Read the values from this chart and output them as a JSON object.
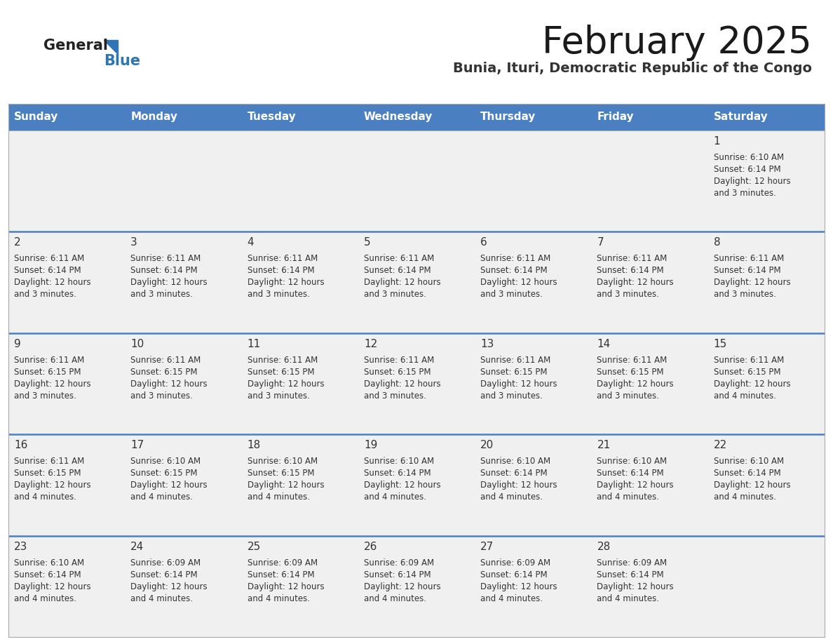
{
  "title": "February 2025",
  "subtitle": "Bunia, Ituri, Democratic Republic of the Congo",
  "header_bg": "#4a7fc1",
  "header_text_color": "#FFFFFF",
  "cell_bg_odd": "#f0f0f0",
  "cell_bg_even": "#ffffff",
  "separator_color": "#4a7fc1",
  "day_number_color": "#333333",
  "info_text_color": "#333333",
  "logo_general_color": "#222222",
  "logo_blue_color": "#2E75B6",
  "day_headers": [
    "Sunday",
    "Monday",
    "Tuesday",
    "Wednesday",
    "Thursday",
    "Friday",
    "Saturday"
  ],
  "calendar": [
    [
      {
        "day": null,
        "sunrise": null,
        "sunset": null,
        "daylight_line1": null,
        "daylight_line2": null
      },
      {
        "day": null,
        "sunrise": null,
        "sunset": null,
        "daylight_line1": null,
        "daylight_line2": null
      },
      {
        "day": null,
        "sunrise": null,
        "sunset": null,
        "daylight_line1": null,
        "daylight_line2": null
      },
      {
        "day": null,
        "sunrise": null,
        "sunset": null,
        "daylight_line1": null,
        "daylight_line2": null
      },
      {
        "day": null,
        "sunrise": null,
        "sunset": null,
        "daylight_line1": null,
        "daylight_line2": null
      },
      {
        "day": null,
        "sunrise": null,
        "sunset": null,
        "daylight_line1": null,
        "daylight_line2": null
      },
      {
        "day": "1",
        "sunrise": "6:10 AM",
        "sunset": "6:14 PM",
        "daylight_line1": "12 hours",
        "daylight_line2": "and 3 minutes."
      }
    ],
    [
      {
        "day": "2",
        "sunrise": "6:11 AM",
        "sunset": "6:14 PM",
        "daylight_line1": "12 hours",
        "daylight_line2": "and 3 minutes."
      },
      {
        "day": "3",
        "sunrise": "6:11 AM",
        "sunset": "6:14 PM",
        "daylight_line1": "12 hours",
        "daylight_line2": "and 3 minutes."
      },
      {
        "day": "4",
        "sunrise": "6:11 AM",
        "sunset": "6:14 PM",
        "daylight_line1": "12 hours",
        "daylight_line2": "and 3 minutes."
      },
      {
        "day": "5",
        "sunrise": "6:11 AM",
        "sunset": "6:14 PM",
        "daylight_line1": "12 hours",
        "daylight_line2": "and 3 minutes."
      },
      {
        "day": "6",
        "sunrise": "6:11 AM",
        "sunset": "6:14 PM",
        "daylight_line1": "12 hours",
        "daylight_line2": "and 3 minutes."
      },
      {
        "day": "7",
        "sunrise": "6:11 AM",
        "sunset": "6:14 PM",
        "daylight_line1": "12 hours",
        "daylight_line2": "and 3 minutes."
      },
      {
        "day": "8",
        "sunrise": "6:11 AM",
        "sunset": "6:14 PM",
        "daylight_line1": "12 hours",
        "daylight_line2": "and 3 minutes."
      }
    ],
    [
      {
        "day": "9",
        "sunrise": "6:11 AM",
        "sunset": "6:15 PM",
        "daylight_line1": "12 hours",
        "daylight_line2": "and 3 minutes."
      },
      {
        "day": "10",
        "sunrise": "6:11 AM",
        "sunset": "6:15 PM",
        "daylight_line1": "12 hours",
        "daylight_line2": "and 3 minutes."
      },
      {
        "day": "11",
        "sunrise": "6:11 AM",
        "sunset": "6:15 PM",
        "daylight_line1": "12 hours",
        "daylight_line2": "and 3 minutes."
      },
      {
        "day": "12",
        "sunrise": "6:11 AM",
        "sunset": "6:15 PM",
        "daylight_line1": "12 hours",
        "daylight_line2": "and 3 minutes."
      },
      {
        "day": "13",
        "sunrise": "6:11 AM",
        "sunset": "6:15 PM",
        "daylight_line1": "12 hours",
        "daylight_line2": "and 3 minutes."
      },
      {
        "day": "14",
        "sunrise": "6:11 AM",
        "sunset": "6:15 PM",
        "daylight_line1": "12 hours",
        "daylight_line2": "and 3 minutes."
      },
      {
        "day": "15",
        "sunrise": "6:11 AM",
        "sunset": "6:15 PM",
        "daylight_line1": "12 hours",
        "daylight_line2": "and 4 minutes."
      }
    ],
    [
      {
        "day": "16",
        "sunrise": "6:11 AM",
        "sunset": "6:15 PM",
        "daylight_line1": "12 hours",
        "daylight_line2": "and 4 minutes."
      },
      {
        "day": "17",
        "sunrise": "6:10 AM",
        "sunset": "6:15 PM",
        "daylight_line1": "12 hours",
        "daylight_line2": "and 4 minutes."
      },
      {
        "day": "18",
        "sunrise": "6:10 AM",
        "sunset": "6:15 PM",
        "daylight_line1": "12 hours",
        "daylight_line2": "and 4 minutes."
      },
      {
        "day": "19",
        "sunrise": "6:10 AM",
        "sunset": "6:14 PM",
        "daylight_line1": "12 hours",
        "daylight_line2": "and 4 minutes."
      },
      {
        "day": "20",
        "sunrise": "6:10 AM",
        "sunset": "6:14 PM",
        "daylight_line1": "12 hours",
        "daylight_line2": "and 4 minutes."
      },
      {
        "day": "21",
        "sunrise": "6:10 AM",
        "sunset": "6:14 PM",
        "daylight_line1": "12 hours",
        "daylight_line2": "and 4 minutes."
      },
      {
        "day": "22",
        "sunrise": "6:10 AM",
        "sunset": "6:14 PM",
        "daylight_line1": "12 hours",
        "daylight_line2": "and 4 minutes."
      }
    ],
    [
      {
        "day": "23",
        "sunrise": "6:10 AM",
        "sunset": "6:14 PM",
        "daylight_line1": "12 hours",
        "daylight_line2": "and 4 minutes."
      },
      {
        "day": "24",
        "sunrise": "6:09 AM",
        "sunset": "6:14 PM",
        "daylight_line1": "12 hours",
        "daylight_line2": "and 4 minutes."
      },
      {
        "day": "25",
        "sunrise": "6:09 AM",
        "sunset": "6:14 PM",
        "daylight_line1": "12 hours",
        "daylight_line2": "and 4 minutes."
      },
      {
        "day": "26",
        "sunrise": "6:09 AM",
        "sunset": "6:14 PM",
        "daylight_line1": "12 hours",
        "daylight_line2": "and 4 minutes."
      },
      {
        "day": "27",
        "sunrise": "6:09 AM",
        "sunset": "6:14 PM",
        "daylight_line1": "12 hours",
        "daylight_line2": "and 4 minutes."
      },
      {
        "day": "28",
        "sunrise": "6:09 AM",
        "sunset": "6:14 PM",
        "daylight_line1": "12 hours",
        "daylight_line2": "and 4 minutes."
      },
      {
        "day": null,
        "sunrise": null,
        "sunset": null,
        "daylight_line1": null,
        "daylight_line2": null
      }
    ]
  ]
}
